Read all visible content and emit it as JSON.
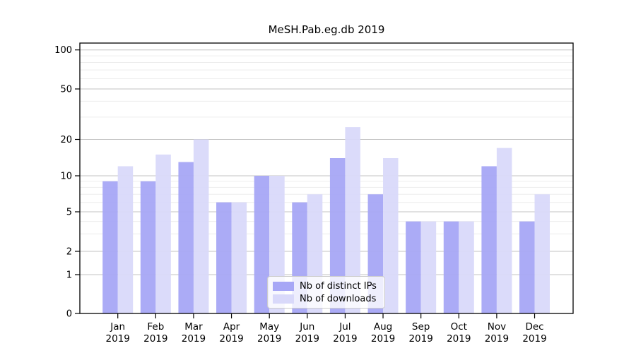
{
  "chart_data": {
    "type": "bar",
    "title": "MeSH.Pab.eg.db 2019",
    "categories": [
      "Jan",
      "Feb",
      "Mar",
      "Apr",
      "May",
      "Jun",
      "Jul",
      "Aug",
      "Sep",
      "Oct",
      "Nov",
      "Dec"
    ],
    "category_year": "2019",
    "series": [
      {
        "name": "Nb of distinct IPs",
        "color": "#a7a7f6",
        "values": [
          9,
          9,
          13,
          6,
          10,
          6,
          14,
          7,
          4,
          4,
          12,
          4
        ]
      },
      {
        "name": "Nb of downloads",
        "color": "#d9d9fa",
        "values": [
          12,
          15,
          20,
          6,
          10,
          7,
          25,
          14,
          4,
          4,
          17,
          7
        ]
      }
    ],
    "yaxis": {
      "scale": "symlog-like",
      "major_ticks": [
        0,
        1,
        2,
        5,
        10,
        20,
        50,
        100
      ],
      "major_tick_labels": [
        "0",
        "1",
        "2",
        "5",
        "10",
        "20",
        "50",
        "100"
      ],
      "minor_ticks": [
        3,
        4,
        6,
        7,
        8,
        9,
        30,
        40,
        60,
        70,
        80,
        90
      ],
      "ylim": [
        0,
        100
      ]
    },
    "grid": {
      "major_color": "#c3c3c3",
      "minor_color": "#ededed",
      "visible": true
    },
    "legend": {
      "position": "bottom-center-inside",
      "background": "rgba(255,255,255,0.8)",
      "border_color": "#cccccc"
    },
    "axis_color": "#000000",
    "tick_label_color": "#000000"
  }
}
